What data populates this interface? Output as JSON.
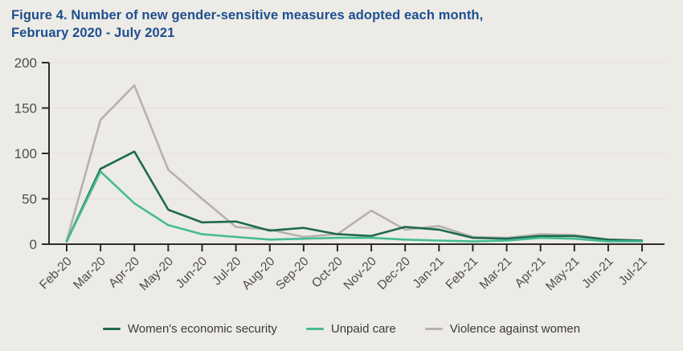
{
  "figure": {
    "title": "Figure 4. Number of new gender-sensitive measures adopted each month,\nFebruary 2020 - July 2021"
  },
  "chart_data": {
    "type": "line",
    "title": "Number of new gender-sensitive measures adopted each month, February 2020 - July 2021",
    "xlabel": "",
    "ylabel": "",
    "categories": [
      "Feb-20",
      "Mar-20",
      "Apr-20",
      "May-20",
      "Jun-20",
      "Jul-20",
      "Aug-20",
      "Sep-20",
      "Oct-20",
      "Nov-20",
      "Dec-20",
      "Jan-21",
      "Feb-21",
      "Mar-21",
      "Apr-21",
      "May-21",
      "Jun-21",
      "Jul-21"
    ],
    "series": [
      {
        "name": "Women's economic security",
        "color": "#1e6a50",
        "values": [
          3,
          83,
          102,
          38,
          24,
          25,
          15,
          18,
          11,
          9,
          19,
          16,
          7,
          6,
          9,
          9,
          5,
          4
        ]
      },
      {
        "name": "Unpaid care",
        "color": "#45bb94",
        "values": [
          3,
          80,
          45,
          21,
          11,
          8,
          5,
          6,
          7,
          7,
          5,
          4,
          3,
          4,
          7,
          6,
          3,
          3
        ]
      },
      {
        "name": "Violence against women",
        "color": "#b5b2ae",
        "values": [
          4,
          137,
          175,
          82,
          50,
          19,
          16,
          8,
          11,
          37,
          16,
          20,
          8,
          7,
          11,
          10,
          5,
          4
        ]
      }
    ],
    "ylim": [
      0,
      200
    ],
    "yticks": [
      0,
      50,
      100,
      150,
      200
    ],
    "grid": "horizontal-subtle",
    "legend_position": "bottom-center",
    "colors": {
      "background": "#edebe6",
      "title": "#1d4f8f",
      "axis": "#2e2c29",
      "tick_label": "#504e4a",
      "gridline": "#e3e0da"
    }
  }
}
